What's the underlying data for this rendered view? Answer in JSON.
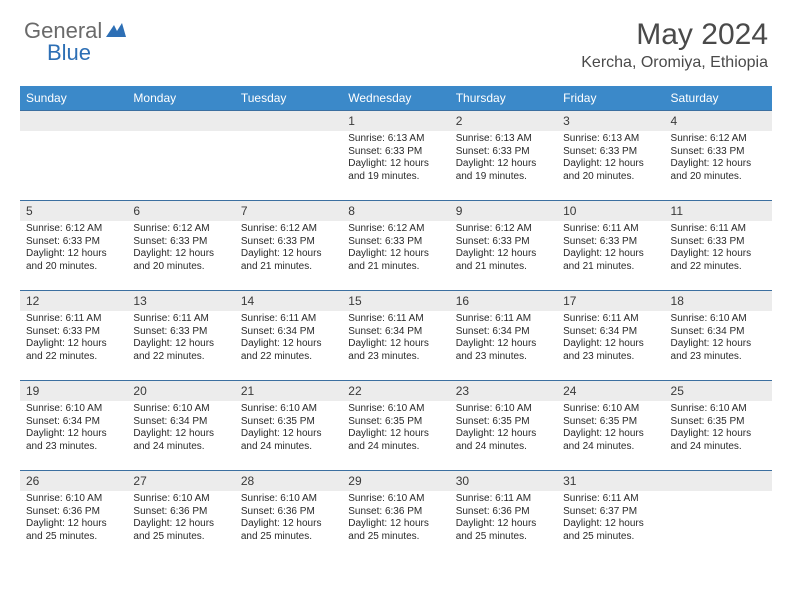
{
  "brand": {
    "part1": "General",
    "part2": "Blue"
  },
  "title": "May 2024",
  "location": "Kercha, Oromiya, Ethiopia",
  "colors": {
    "header_bg": "#3b89c9",
    "header_text": "#ffffff",
    "daynum_bg": "#ececec",
    "week_border": "#3b6fa0",
    "title_color": "#4a4a4a",
    "logo_gray": "#6a6a6a",
    "logo_blue": "#2d6fb5"
  },
  "typography": {
    "title_fontsize": 30,
    "location_fontsize": 16,
    "dayhead_fontsize": 12,
    "daynum_fontsize": 12,
    "daytext_fontsize": 10
  },
  "day_headers": [
    "Sunday",
    "Monday",
    "Tuesday",
    "Wednesday",
    "Thursday",
    "Friday",
    "Saturday"
  ],
  "weeks": [
    [
      null,
      null,
      null,
      {
        "n": "1",
        "sr": "6:13 AM",
        "ss": "6:33 PM",
        "dl": "12 hours and 19 minutes."
      },
      {
        "n": "2",
        "sr": "6:13 AM",
        "ss": "6:33 PM",
        "dl": "12 hours and 19 minutes."
      },
      {
        "n": "3",
        "sr": "6:13 AM",
        "ss": "6:33 PM",
        "dl": "12 hours and 20 minutes."
      },
      {
        "n": "4",
        "sr": "6:12 AM",
        "ss": "6:33 PM",
        "dl": "12 hours and 20 minutes."
      }
    ],
    [
      {
        "n": "5",
        "sr": "6:12 AM",
        "ss": "6:33 PM",
        "dl": "12 hours and 20 minutes."
      },
      {
        "n": "6",
        "sr": "6:12 AM",
        "ss": "6:33 PM",
        "dl": "12 hours and 20 minutes."
      },
      {
        "n": "7",
        "sr": "6:12 AM",
        "ss": "6:33 PM",
        "dl": "12 hours and 21 minutes."
      },
      {
        "n": "8",
        "sr": "6:12 AM",
        "ss": "6:33 PM",
        "dl": "12 hours and 21 minutes."
      },
      {
        "n": "9",
        "sr": "6:12 AM",
        "ss": "6:33 PM",
        "dl": "12 hours and 21 minutes."
      },
      {
        "n": "10",
        "sr": "6:11 AM",
        "ss": "6:33 PM",
        "dl": "12 hours and 21 minutes."
      },
      {
        "n": "11",
        "sr": "6:11 AM",
        "ss": "6:33 PM",
        "dl": "12 hours and 22 minutes."
      }
    ],
    [
      {
        "n": "12",
        "sr": "6:11 AM",
        "ss": "6:33 PM",
        "dl": "12 hours and 22 minutes."
      },
      {
        "n": "13",
        "sr": "6:11 AM",
        "ss": "6:33 PM",
        "dl": "12 hours and 22 minutes."
      },
      {
        "n": "14",
        "sr": "6:11 AM",
        "ss": "6:34 PM",
        "dl": "12 hours and 22 minutes."
      },
      {
        "n": "15",
        "sr": "6:11 AM",
        "ss": "6:34 PM",
        "dl": "12 hours and 23 minutes."
      },
      {
        "n": "16",
        "sr": "6:11 AM",
        "ss": "6:34 PM",
        "dl": "12 hours and 23 minutes."
      },
      {
        "n": "17",
        "sr": "6:11 AM",
        "ss": "6:34 PM",
        "dl": "12 hours and 23 minutes."
      },
      {
        "n": "18",
        "sr": "6:10 AM",
        "ss": "6:34 PM",
        "dl": "12 hours and 23 minutes."
      }
    ],
    [
      {
        "n": "19",
        "sr": "6:10 AM",
        "ss": "6:34 PM",
        "dl": "12 hours and 23 minutes."
      },
      {
        "n": "20",
        "sr": "6:10 AM",
        "ss": "6:34 PM",
        "dl": "12 hours and 24 minutes."
      },
      {
        "n": "21",
        "sr": "6:10 AM",
        "ss": "6:35 PM",
        "dl": "12 hours and 24 minutes."
      },
      {
        "n": "22",
        "sr": "6:10 AM",
        "ss": "6:35 PM",
        "dl": "12 hours and 24 minutes."
      },
      {
        "n": "23",
        "sr": "6:10 AM",
        "ss": "6:35 PM",
        "dl": "12 hours and 24 minutes."
      },
      {
        "n": "24",
        "sr": "6:10 AM",
        "ss": "6:35 PM",
        "dl": "12 hours and 24 minutes."
      },
      {
        "n": "25",
        "sr": "6:10 AM",
        "ss": "6:35 PM",
        "dl": "12 hours and 24 minutes."
      }
    ],
    [
      {
        "n": "26",
        "sr": "6:10 AM",
        "ss": "6:36 PM",
        "dl": "12 hours and 25 minutes."
      },
      {
        "n": "27",
        "sr": "6:10 AM",
        "ss": "6:36 PM",
        "dl": "12 hours and 25 minutes."
      },
      {
        "n": "28",
        "sr": "6:10 AM",
        "ss": "6:36 PM",
        "dl": "12 hours and 25 minutes."
      },
      {
        "n": "29",
        "sr": "6:10 AM",
        "ss": "6:36 PM",
        "dl": "12 hours and 25 minutes."
      },
      {
        "n": "30",
        "sr": "6:11 AM",
        "ss": "6:36 PM",
        "dl": "12 hours and 25 minutes."
      },
      {
        "n": "31",
        "sr": "6:11 AM",
        "ss": "6:37 PM",
        "dl": "12 hours and 25 minutes."
      },
      null
    ]
  ],
  "labels": {
    "sunrise": "Sunrise:",
    "sunset": "Sunset:",
    "daylight": "Daylight:"
  }
}
